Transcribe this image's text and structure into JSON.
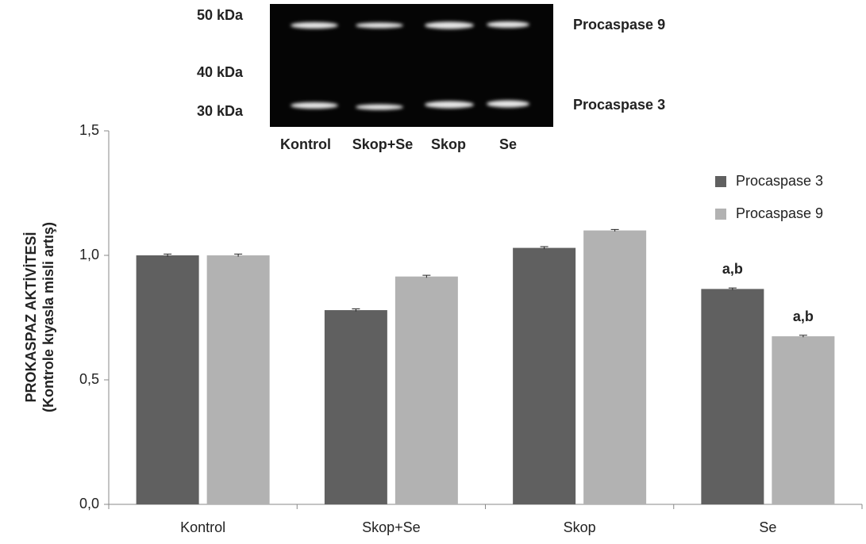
{
  "chart_data": {
    "type": "bar",
    "y_label": [
      "PROKASPAZ AKTİVİTESİ",
      "(Kontrole kıyasla misli artış)"
    ],
    "categories": [
      "Kontrol",
      "Skop+Se",
      "Skop",
      "Se"
    ],
    "series": [
      {
        "name": "Procaspase 3",
        "color": "#606060",
        "values": [
          1.0,
          0.78,
          1.03,
          0.865
        ],
        "errors": [
          0.005,
          0.005,
          0.005,
          0.004
        ]
      },
      {
        "name": "Procaspase 9",
        "color": "#b2b2b2",
        "values": [
          1.0,
          0.915,
          1.1,
          0.675
        ],
        "errors": [
          0.005,
          0.005,
          0.004,
          0.004
        ]
      }
    ],
    "annotations": [
      "a,b",
      "a,b"
    ],
    "ylim": [
      0,
      1.5
    ],
    "yticks": [
      {
        "value": 0,
        "label": "0,0"
      },
      {
        "value": 0.5,
        "label": "0,5"
      },
      {
        "value": 1.0,
        "label": "1,0"
      },
      {
        "value": 1.5,
        "label": "1,5"
      }
    ],
    "legend": "upper right",
    "blot": {
      "mw_labels": [
        "50 kDa",
        "40 kDa",
        "30 kDa"
      ],
      "band_labels": [
        "Procaspase 9",
        "Procaspase 3"
      ],
      "lane_labels": [
        "Kontrol",
        "Skop+Se",
        "Skop",
        "Se"
      ]
    }
  }
}
